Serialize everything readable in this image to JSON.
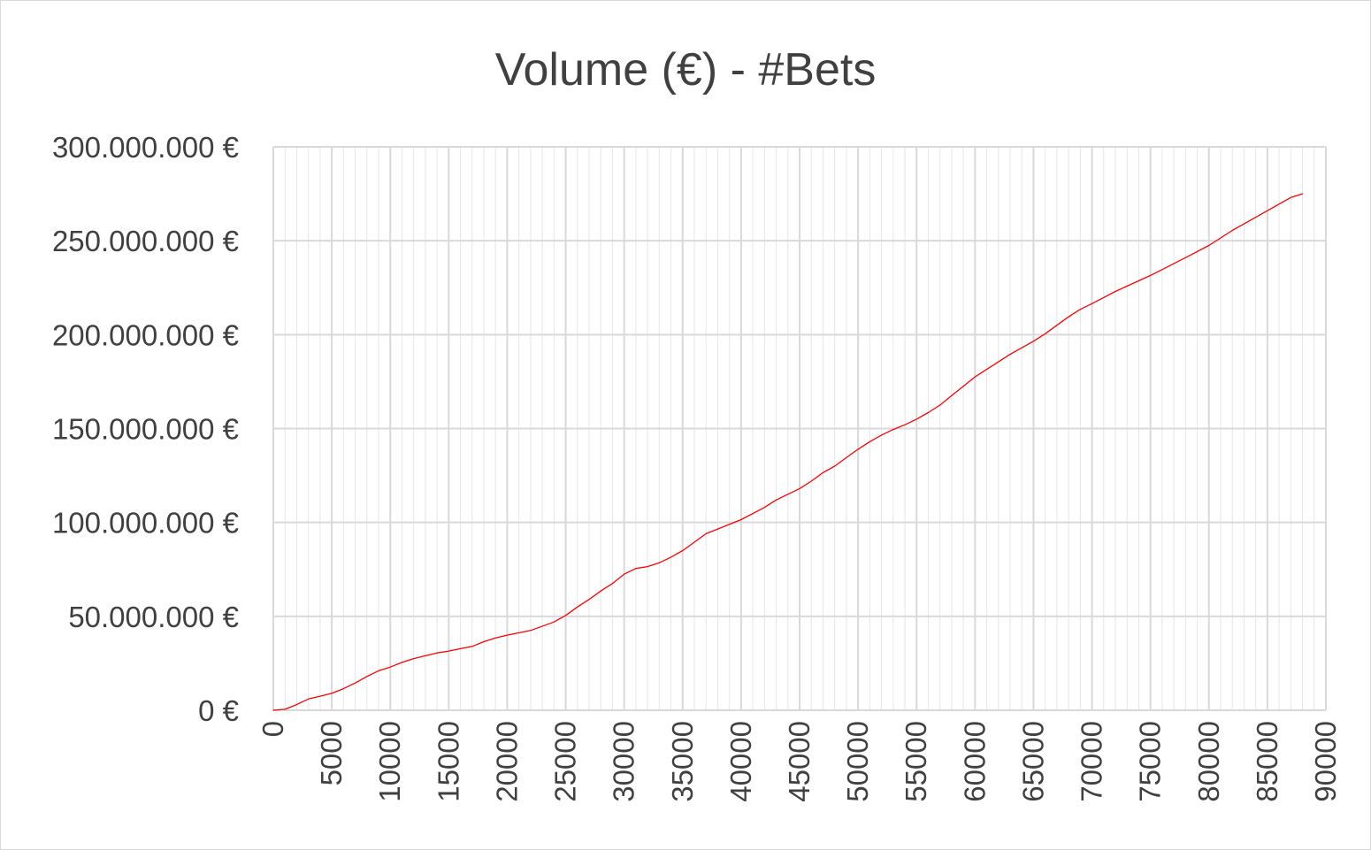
{
  "chart_data": {
    "type": "line",
    "title": "Volume (€) - #Bets",
    "xlabel": "",
    "ylabel": "",
    "xlim": [
      0,
      90000
    ],
    "ylim": [
      0,
      300000000
    ],
    "x_ticks": [
      0,
      5000,
      10000,
      15000,
      20000,
      25000,
      30000,
      35000,
      40000,
      45000,
      50000,
      55000,
      60000,
      65000,
      70000,
      75000,
      80000,
      85000,
      90000
    ],
    "x_tick_labels": [
      "0",
      "5000",
      "10000",
      "15000",
      "20000",
      "25000",
      "30000",
      "35000",
      "40000",
      "45000",
      "50000",
      "55000",
      "60000",
      "65000",
      "70000",
      "75000",
      "80000",
      "85000",
      "90000"
    ],
    "y_ticks": [
      0,
      50000000,
      100000000,
      150000000,
      200000000,
      250000000,
      300000000
    ],
    "y_tick_labels": [
      "0 €",
      "50.000.000 €",
      "100.000.000 €",
      "150.000.000 €",
      "200.000.000 €",
      "250.000.000 €",
      "300.000.000 €"
    ],
    "grid": {
      "major": true,
      "minor_x_step": 1000
    },
    "line_color": "#ff0000",
    "grid_color": "#d9d9d9",
    "series": [
      {
        "x": [
          0,
          1000,
          2000,
          3000,
          4000,
          5000,
          6000,
          7000,
          8000,
          9000,
          10000,
          11000,
          12000,
          13000,
          14000,
          15000,
          17000,
          18000,
          19000,
          20000,
          22000,
          24000,
          25000,
          26000,
          27000,
          28000,
          29000,
          30000,
          31000,
          32000,
          33000,
          34000,
          35000,
          36000,
          37000,
          38000,
          40000,
          42000,
          43000,
          45000,
          46000,
          47000,
          48000,
          49000,
          50000,
          51000,
          52000,
          53000,
          54000,
          55000,
          56000,
          57000,
          58000,
          59000,
          60000,
          61000,
          62000,
          63000,
          64000,
          65000,
          66000,
          67000,
          68000,
          69000,
          70000,
          72000,
          75000,
          78000,
          80000,
          82000,
          85000,
          87000,
          88000
        ],
        "y": [
          0,
          500000,
          3000000,
          6000000,
          7500000,
          9000000,
          11500000,
          14500000,
          18000000,
          21000000,
          23000000,
          25500000,
          27500000,
          29000000,
          30500000,
          31500000,
          34000000,
          36500000,
          38500000,
          40000000,
          42500000,
          47000000,
          50500000,
          55000000,
          59000000,
          63500000,
          67500000,
          72500000,
          75500000,
          76500000,
          78500000,
          81500000,
          85000000,
          89500000,
          94000000,
          96500000,
          101500000,
          108000000,
          112000000,
          118000000,
          122000000,
          126500000,
          130000000,
          134500000,
          139000000,
          143000000,
          146500000,
          149500000,
          152000000,
          155000000,
          158500000,
          162500000,
          167500000,
          172500000,
          177500000,
          181500000,
          185500000,
          189500000,
          193000000,
          196500000,
          200500000,
          205000000,
          209500000,
          213500000,
          216500000,
          223000000,
          231500000,
          241000000,
          247500000,
          255500000,
          266000000,
          273000000,
          275000000
        ]
      }
    ]
  }
}
